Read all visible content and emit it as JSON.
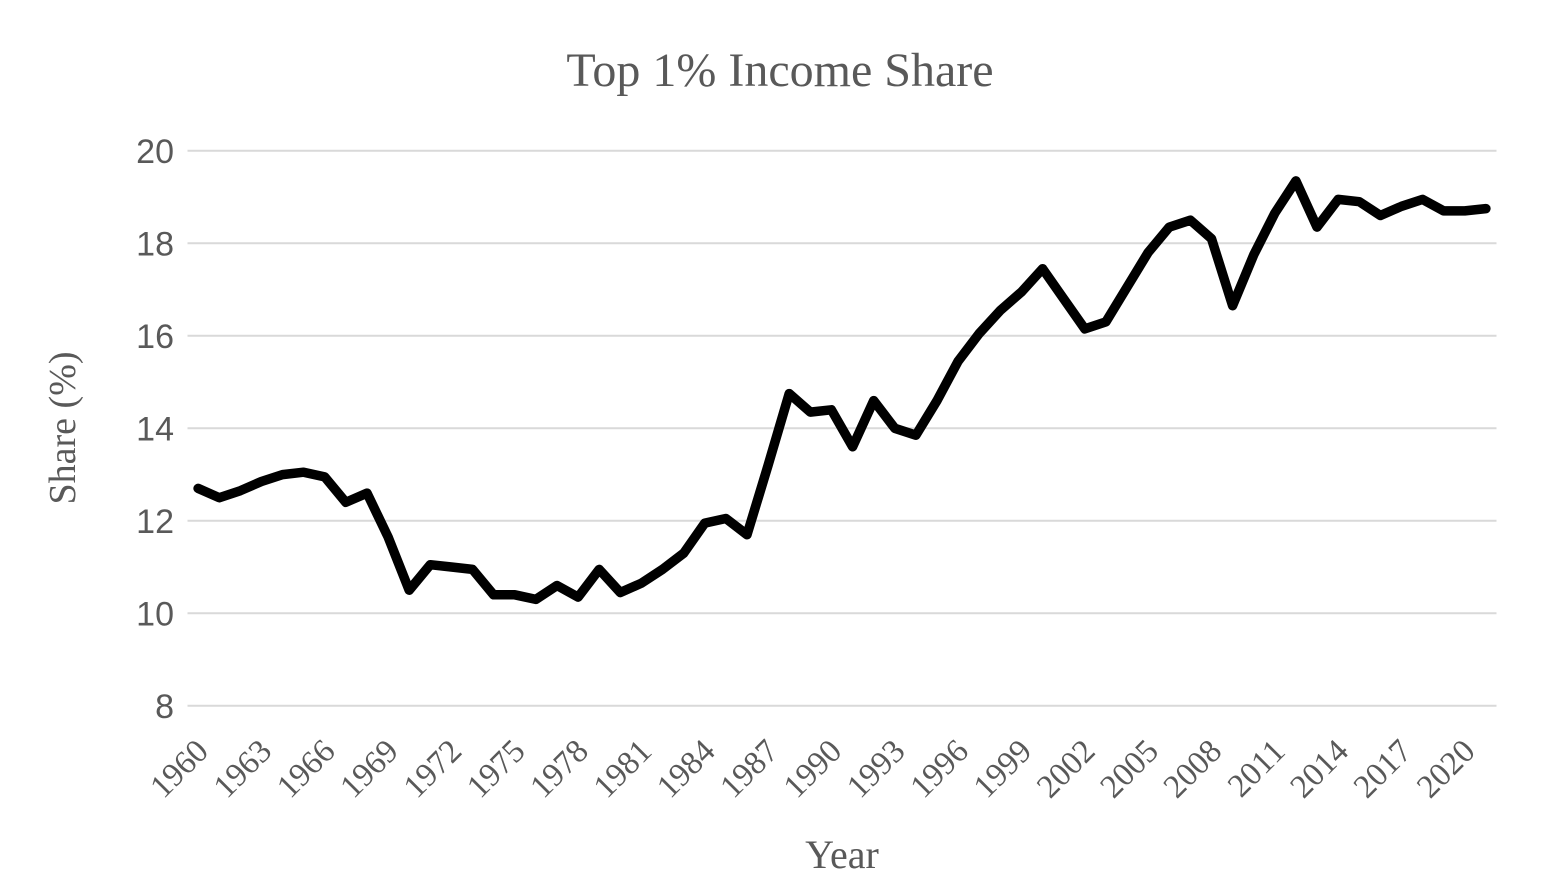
{
  "chart_data": {
    "type": "line",
    "title": "Top 1% Income Share",
    "xlabel": "Year",
    "ylabel": "Share (%)",
    "x": [
      1960,
      1961,
      1962,
      1963,
      1964,
      1965,
      1966,
      1967,
      1968,
      1969,
      1970,
      1971,
      1972,
      1973,
      1974,
      1975,
      1976,
      1977,
      1978,
      1979,
      1980,
      1981,
      1982,
      1983,
      1984,
      1985,
      1986,
      1987,
      1988,
      1989,
      1990,
      1991,
      1992,
      1993,
      1994,
      1995,
      1996,
      1997,
      1998,
      1999,
      2000,
      2001,
      2002,
      2003,
      2004,
      2005,
      2006,
      2007,
      2008,
      2009,
      2010,
      2011,
      2012,
      2013,
      2014,
      2015,
      2016,
      2017,
      2018,
      2019,
      2020,
      2021
    ],
    "values": [
      12.7,
      12.5,
      12.65,
      12.85,
      13.0,
      13.05,
      12.95,
      12.4,
      12.6,
      11.65,
      10.5,
      11.05,
      11.0,
      10.95,
      10.4,
      10.4,
      10.3,
      10.6,
      10.35,
      10.95,
      10.45,
      10.65,
      10.95,
      11.3,
      11.95,
      12.05,
      11.7,
      13.2,
      14.75,
      14.35,
      14.4,
      13.6,
      14.6,
      14.0,
      13.85,
      14.6,
      15.45,
      16.05,
      16.55,
      16.95,
      17.45,
      16.8,
      16.15,
      16.3,
      17.05,
      17.8,
      18.35,
      18.5,
      18.1,
      16.65,
      17.75,
      18.65,
      19.35,
      18.35,
      18.95,
      18.9,
      18.6,
      18.8,
      18.95,
      18.7,
      18.7,
      18.75
    ],
    "ylim": [
      8,
      20
    ],
    "yticks": [
      20,
      18,
      16,
      14,
      12,
      10,
      8
    ],
    "xticks": [
      1960,
      1963,
      1966,
      1969,
      1972,
      1975,
      1978,
      1981,
      1984,
      1987,
      1990,
      1993,
      1996,
      1999,
      2002,
      2005,
      2008,
      2011,
      2014,
      2017,
      2020
    ],
    "grid": true,
    "legend": "none",
    "colors": {
      "line": "#000000",
      "grid": "#d9d9d9",
      "text": "#595959",
      "background": "#ffffff"
    }
  }
}
